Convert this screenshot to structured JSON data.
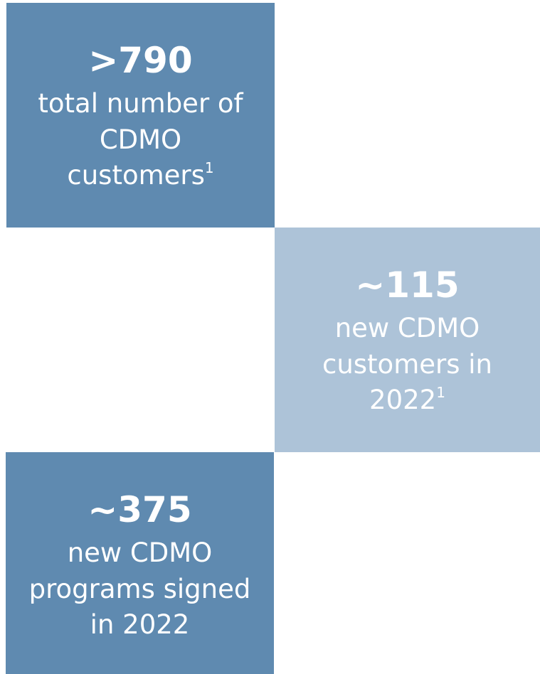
{
  "tiles": [
    {
      "stat": ">790",
      "lines": [
        "total number of",
        "CDMO",
        "customers"
      ],
      "footnote": "1"
    },
    {
      "stat": "~115",
      "lines": [
        "new CDMO",
        "customers in",
        "2022"
      ],
      "footnote": "1"
    },
    {
      "stat": "~375",
      "lines": [
        "new CDMO",
        "programs signed",
        "in 2022"
      ]
    }
  ]
}
